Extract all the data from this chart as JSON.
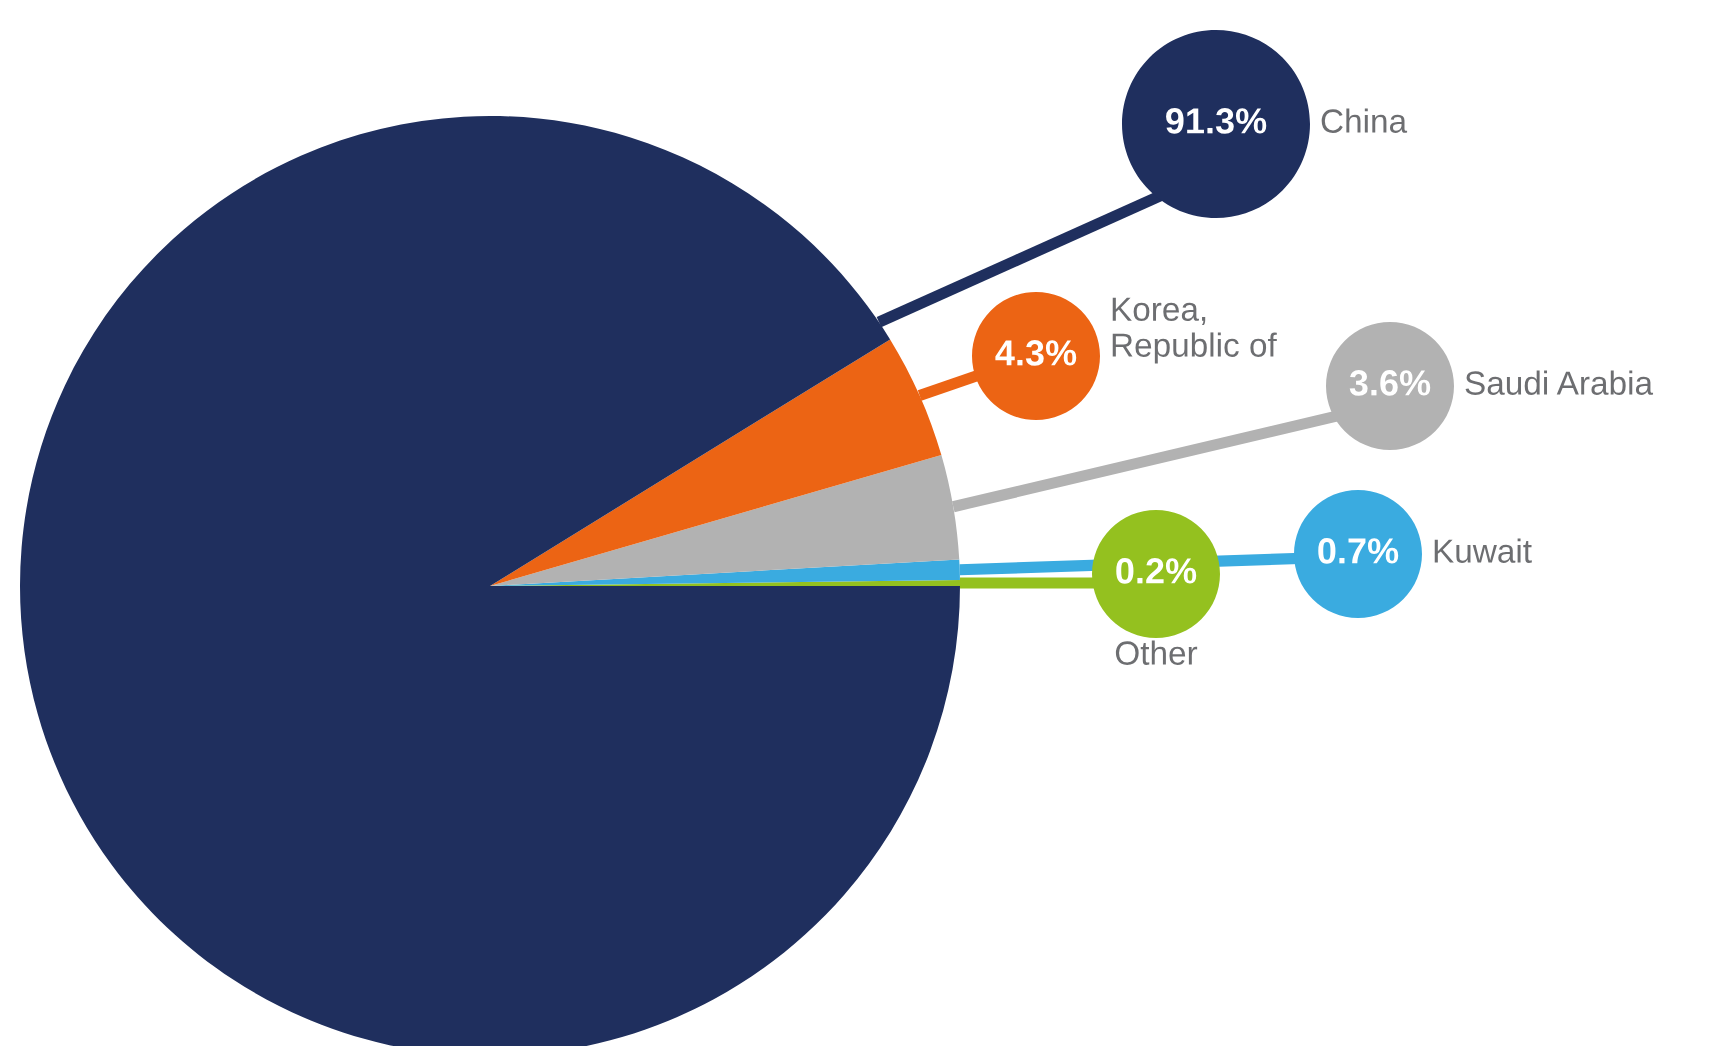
{
  "chart_data": {
    "type": "pie",
    "categories": [
      "Other",
      "Kuwait",
      "Saudi Arabia",
      "Korea,\nRepublic of",
      "China"
    ],
    "values": [
      0.2,
      0.7,
      3.6,
      4.3,
      91.3
    ],
    "colors": [
      "#94c11f",
      "#3aabe0",
      "#b2b2b2",
      "#ec6414",
      "#1f2f5e"
    ],
    "value_labels": [
      "0.2%",
      "0.7%",
      "3.6%",
      "4.3%",
      "91.3%"
    ],
    "legend": false
  }
}
